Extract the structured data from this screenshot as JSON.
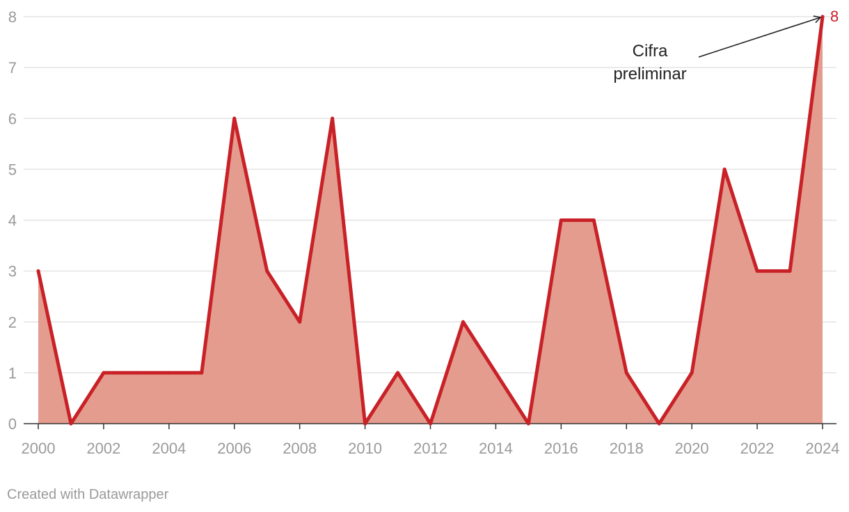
{
  "chart_data": {
    "type": "area",
    "title": "",
    "xlabel": "",
    "ylabel": "",
    "x": [
      2000,
      2001,
      2002,
      2003,
      2004,
      2005,
      2006,
      2007,
      2008,
      2009,
      2010,
      2011,
      2012,
      2013,
      2014,
      2015,
      2016,
      2017,
      2018,
      2019,
      2020,
      2021,
      2022,
      2023,
      2024
    ],
    "values": [
      3,
      0,
      1,
      1,
      1,
      1,
      6,
      3,
      2,
      6,
      0,
      1,
      0,
      2,
      1,
      0,
      4,
      4,
      1,
      0,
      1,
      5,
      3,
      3,
      8
    ],
    "xlim": [
      2000,
      2024
    ],
    "ylim": [
      0,
      8
    ],
    "x_ticks": [
      "2000",
      "2002",
      "2004",
      "2006",
      "2008",
      "2010",
      "2012",
      "2014",
      "2016",
      "2018",
      "2020",
      "2022",
      "2024"
    ],
    "y_ticks": [
      "0",
      "1",
      "2",
      "3",
      "4",
      "5",
      "6",
      "7",
      "8"
    ],
    "grid": "horizontal",
    "annotation": {
      "lines": [
        "Cifra",
        "preliminar"
      ],
      "points_to_year": 2024,
      "points_to_value": 8
    },
    "end_label": "8",
    "colors": {
      "line": "#c82127",
      "fill": "#e49c8e",
      "grid": "#e3e3e3",
      "axis": "#333333",
      "tick_text": "#9a9a9a"
    }
  },
  "footer": {
    "credit": "Created with Datawrapper"
  }
}
